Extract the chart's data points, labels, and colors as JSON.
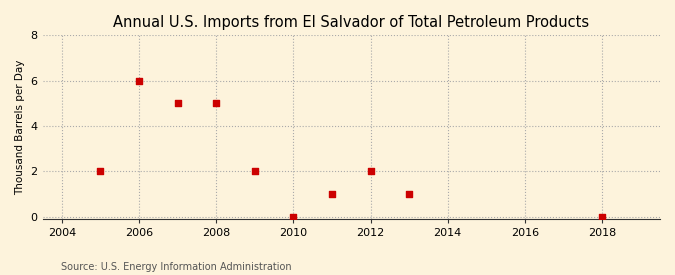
{
  "title": "Annual U.S. Imports from El Salvador of Total Petroleum Products",
  "ylabel": "Thousand Barrels per Day",
  "source": "Source: U.S. Energy Information Administration",
  "background_color": "#fdf3dc",
  "data_points": {
    "years": [
      2005,
      2006,
      2007,
      2008,
      2009,
      2010,
      2011,
      2012,
      2013,
      2018
    ],
    "values": [
      2,
      6,
      5,
      5,
      2,
      0,
      1,
      2,
      1,
      0
    ]
  },
  "xlim": [
    2003.5,
    2019.5
  ],
  "ylim": [
    -0.1,
    8
  ],
  "yticks": [
    0,
    2,
    4,
    6,
    8
  ],
  "xticks": [
    2004,
    2006,
    2008,
    2010,
    2012,
    2014,
    2016,
    2018
  ],
  "marker_color": "#cc0000",
  "marker": "s",
  "marker_size": 16,
  "grid_color": "#aaaaaa",
  "grid_linestyle": ":",
  "title_fontsize": 10.5,
  "label_fontsize": 7.5,
  "tick_fontsize": 8,
  "source_fontsize": 7
}
